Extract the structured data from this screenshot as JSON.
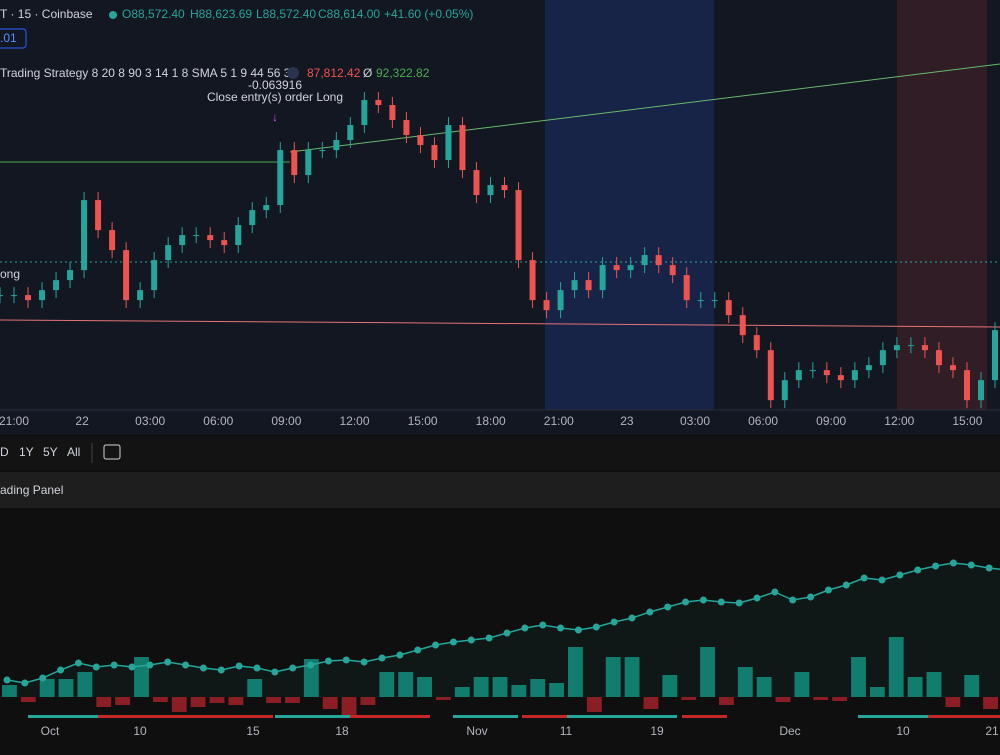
{
  "header": {
    "symbol": "T · 15 · Coinbase",
    "open": "O88,572.40",
    "high": "H88,623.69",
    "low": "L88,572.40",
    "close": "C88,614.00",
    "change": "+41.60 (+0.05%)",
    "badge": ".01"
  },
  "strategy": {
    "name": "Trading Strategy 8 20 8 90 3 14 1 8 SMA 5 1 9 44 56 3",
    "stop": "87,812.42",
    "sep": "Ø",
    "target": "92,322.82"
  },
  "annotations": {
    "value": "-0.063916",
    "order": "Close entry(s) order Long",
    "side": "ong"
  },
  "price_chart": {
    "ylim": [
      85270,
      96950
    ],
    "closes": [
      88543,
      88543,
      88400,
      88685,
      88970,
      89255,
      91250,
      90395,
      89825,
      88400,
      88685,
      89540,
      89968,
      90253,
      90253,
      90110,
      89968,
      90538,
      90965,
      91108,
      92675,
      91963,
      92675,
      92675,
      92960,
      93388,
      94100,
      93958,
      93530,
      93103,
      92818,
      92390,
      93388,
      92105,
      91393,
      91678,
      91535,
      89540,
      88400,
      88115,
      88685,
      88970,
      88685,
      89398,
      89255,
      89398,
      89683,
      89398,
      89113,
      88400,
      88400,
      88400,
      87973,
      87403,
      86975,
      85550,
      86120,
      86405,
      86405,
      86263,
      86120,
      86405,
      86548,
      86975,
      87118,
      87118,
      86975,
      86548,
      86405,
      85550,
      86120,
      87545
    ],
    "xticks": [
      "21:00",
      "22",
      "03:00",
      "06:00",
      "09:00",
      "12:00",
      "15:00",
      "18:00",
      "21:00",
      "23",
      "03:00",
      "06:00",
      "09:00",
      "12:00",
      "15:00"
    ]
  },
  "toolbar": {
    "ranges": [
      "D",
      "1Y",
      "5Y",
      "All"
    ]
  },
  "panel": {
    "title": "ading Panel",
    "ylim": [
      0,
      250
    ],
    "equity": [
      70,
      67,
      72,
      80,
      87,
      83,
      85,
      83,
      85,
      88,
      85,
      82,
      80,
      84,
      82,
      78,
      82,
      85,
      89,
      90,
      88,
      92,
      95,
      100,
      105,
      108,
      110,
      112,
      117,
      122,
      125,
      122,
      120,
      123,
      128,
      132,
      138,
      143,
      148,
      150,
      148,
      147,
      152,
      158,
      150,
      153,
      160,
      165,
      172,
      170,
      175,
      180,
      184,
      187,
      185,
      182,
      180
    ],
    "bars": [
      12,
      -5,
      18,
      18,
      25,
      -10,
      -8,
      40,
      -5,
      -15,
      -10,
      -6,
      -8,
      18,
      -6,
      -6,
      38,
      -12,
      -18,
      -8,
      25,
      25,
      20,
      -3,
      10,
      20,
      20,
      12,
      18,
      14,
      50,
      -15,
      40,
      40,
      -12,
      22,
      -3,
      50,
      -8,
      30,
      20,
      -5,
      25,
      -3,
      -4,
      40,
      10,
      60,
      20,
      25,
      -10,
      22,
      -12
    ],
    "xticks": [
      "Oct",
      "10",
      "15",
      "18",
      "Nov",
      "11",
      "19",
      "Dec",
      "10",
      "21"
    ]
  }
}
